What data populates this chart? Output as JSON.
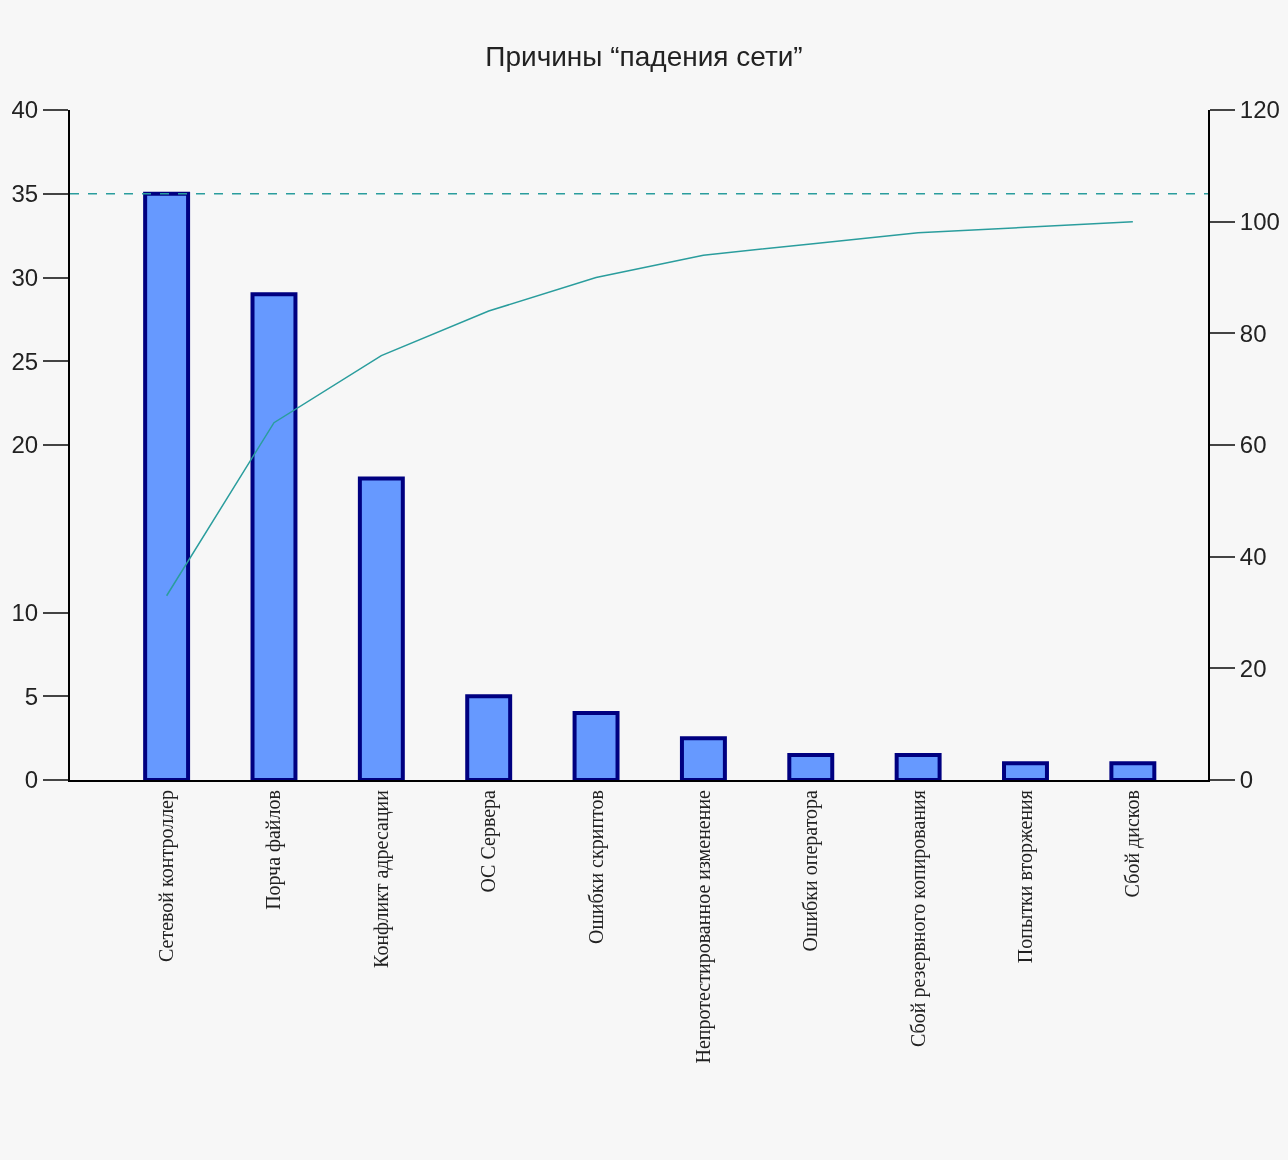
{
  "chart_data": {
    "type": "bar",
    "title": "Причины “падения сети”",
    "categories": [
      "Сетевой контроллер",
      "Порча файлов",
      "Конфликт адресации",
      "ОС Сервера",
      "Ошибки скриптов",
      "Непротестированное изменение",
      "Ошибки оператора",
      "Сбой резервного копирования",
      "Попытки вторжения",
      "Сбой дисков"
    ],
    "series": [
      {
        "color": "#6699ff",
        "values": [
          35,
          29,
          18,
          5,
          4,
          2.5,
          1.5,
          1.5,
          1,
          1
        ]
      },
      {
        "type": "line",
        "axis": "y2",
        "color": "#2a9d9d",
        "values": [
          33,
          64,
          76,
          84,
          90,
          94,
          96,
          98,
          99,
          100
        ]
      }
    ],
    "ylim": [
      0,
      40
    ],
    "yticks": [
      0,
      5,
      10,
      20,
      25,
      30,
      35,
      40
    ],
    "y2lim": [
      0,
      120
    ],
    "y2ticks": [
      0,
      20,
      40,
      60,
      80,
      100,
      120
    ],
    "ref_lines": [
      {
        "axis": "y",
        "value": 35,
        "color": "#2a9d9d",
        "line_style": "dashed"
      }
    ],
    "grid": false,
    "marker": "none",
    "line_style": "solid"
  }
}
